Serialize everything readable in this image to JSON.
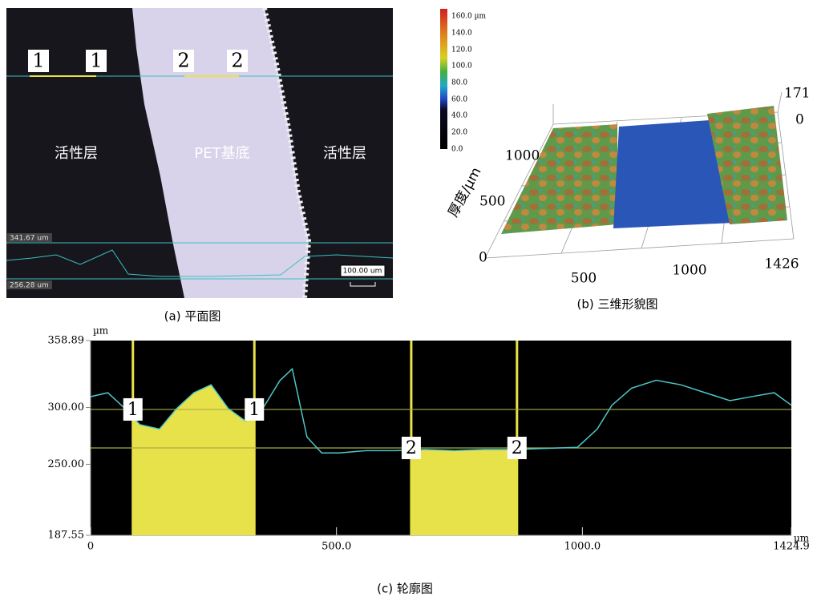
{
  "panel_a": {
    "caption": "(a) 平面图",
    "markers": [
      "1",
      "1",
      "2",
      "2"
    ],
    "regions": [
      "活性层",
      "PET基底",
      "活性层"
    ],
    "scale_labels": [
      "341.67 um",
      "256.28 um"
    ],
    "scale_bar": "100.00 um"
  },
  "panel_b": {
    "caption": "(b) 三维形貌图",
    "colorbar_labels": [
      "160.0 µm",
      "140.0",
      "120.0",
      "100.0",
      "80.0",
      "60.0",
      "40.0",
      "20.0",
      "0.0"
    ],
    "z_labels": [
      "171",
      "0"
    ],
    "y_labels": [
      "1000",
      "500",
      "0"
    ],
    "y_title": "厚度/µm",
    "x_labels": [
      "500",
      "1000",
      "1426"
    ]
  },
  "chart_data": {
    "type": "line",
    "caption": "(c) 轮廓图",
    "y_unit": "µm",
    "x_unit": "µm",
    "color": "#4fc7c7",
    "region_color": "#e8e24a",
    "hline_color": "#a8ad4a",
    "x": [
      0,
      35,
      70,
      100,
      140,
      175,
      210,
      245,
      280,
      315,
      350,
      385,
      410,
      440,
      470,
      505,
      560,
      620,
      680,
      740,
      800,
      860,
      920,
      990,
      1030,
      1060,
      1100,
      1150,
      1200,
      1250,
      1300,
      1350,
      1390,
      1424.9
    ],
    "values": [
      309.5,
      313,
      299,
      285,
      281,
      299,
      313,
      320,
      299,
      288,
      299,
      323.7,
      334,
      274,
      260,
      260,
      262,
      262,
      263,
      262,
      263,
      263,
      264,
      265,
      281,
      302,
      317,
      324,
      320,
      313,
      306,
      310,
      313,
      302
    ],
    "xlim": [
      0,
      1424.9
    ],
    "ylim": [
      187.55,
      358.89
    ],
    "xticks": [
      0,
      {
        "value": 500,
        "label": "500.0"
      },
      {
        "value": 1000,
        "label": "1000.0"
      },
      1424.9
    ],
    "yticks": [
      187.55,
      {
        "value": 250,
        "label": "250.00"
      },
      {
        "value": 300,
        "label": "300.00"
      },
      358.89
    ],
    "regions": [
      [
        86,
        333
      ],
      [
        652,
        867
      ]
    ],
    "hlines": [
      298.3,
      264.4
    ],
    "marker_labels": [
      "1",
      "1",
      "2",
      "2"
    ]
  }
}
